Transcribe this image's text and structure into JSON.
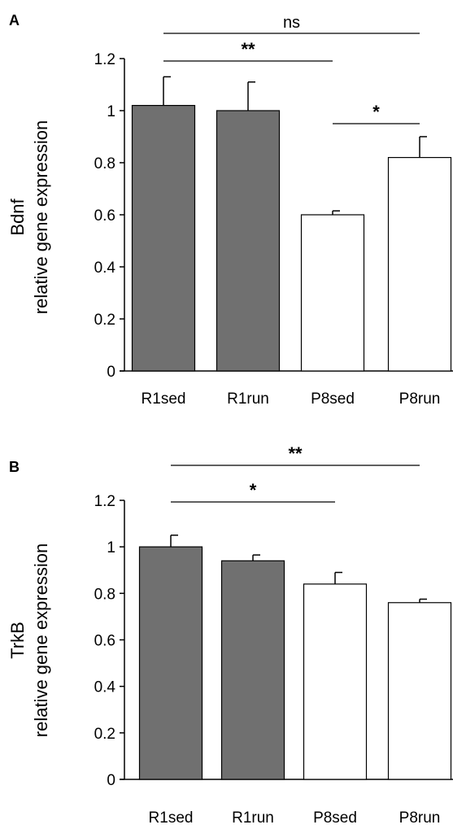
{
  "chart_data": [
    {
      "panel": "A",
      "type": "bar",
      "categories": [
        "R1sed",
        "R1run",
        "P8sed",
        "P8run"
      ],
      "values": [
        1.02,
        1.0,
        0.6,
        0.82
      ],
      "errors": [
        0.11,
        0.11,
        0.015,
        0.08
      ],
      "bar_colors": [
        "#707070",
        "#707070",
        "#ffffff",
        "#ffffff"
      ],
      "ylabel_lines": [
        "Bdnf",
        "relative gene expression"
      ],
      "ylim": [
        0,
        1.2
      ],
      "yticks": [
        "0",
        "0.2",
        "0.4",
        "0.6",
        "0.8",
        "1",
        "1.2"
      ],
      "significance": [
        {
          "from": 0,
          "to": 3,
          "label": "ns"
        },
        {
          "from": 0,
          "to": 2,
          "label": "**"
        },
        {
          "from": 2,
          "to": 3,
          "label": "*"
        }
      ]
    },
    {
      "panel": "B",
      "type": "bar",
      "categories": [
        "R1sed",
        "R1run",
        "P8sed",
        "P8run"
      ],
      "values": [
        1.0,
        0.94,
        0.84,
        0.76
      ],
      "errors": [
        0.05,
        0.025,
        0.05,
        0.015
      ],
      "bar_colors": [
        "#707070",
        "#707070",
        "#ffffff",
        "#ffffff"
      ],
      "ylabel_lines": [
        "TrkB",
        "relative gene expression"
      ],
      "ylim": [
        0,
        1.2
      ],
      "yticks": [
        "0",
        "0.2",
        "0.4",
        "0.6",
        "0.8",
        "1",
        "1.2"
      ],
      "significance": [
        {
          "from": 0,
          "to": 3,
          "label": "**"
        },
        {
          "from": 0,
          "to": 2,
          "label": "*"
        }
      ]
    }
  ]
}
